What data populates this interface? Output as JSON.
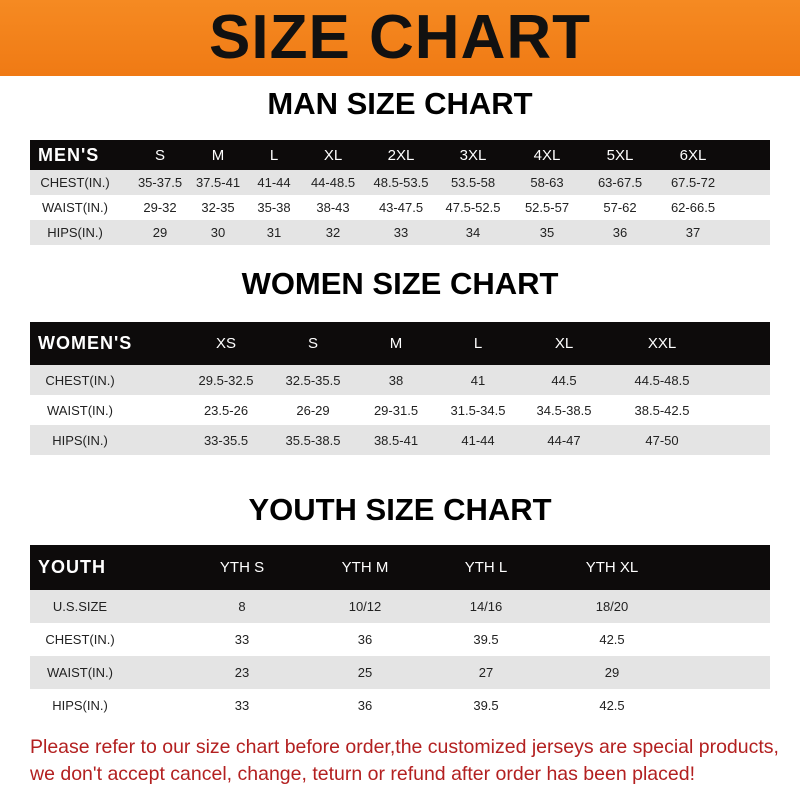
{
  "banner_title": "SIZE CHART",
  "tables": [
    {
      "title": "MAN SIZE CHART",
      "headers": [
        "MEN'S",
        "S",
        "M",
        "L",
        "XL",
        "2XL",
        "3XL",
        "4XL",
        "5XL",
        "6XL"
      ],
      "rows": [
        [
          "CHEST(IN.)",
          "35-37.5",
          "37.5-41",
          "41-44",
          "44-48.5",
          "48.5-53.5",
          "53.5-58",
          "58-63",
          "63-67.5",
          "67.5-72"
        ],
        [
          "WAIST(IN.)",
          "29-32",
          "32-35",
          "35-38",
          "38-43",
          "43-47.5",
          "47.5-52.5",
          "52.5-57",
          "57-62",
          "62-66.5"
        ],
        [
          "HIPS(IN.)",
          "29",
          "30",
          "31",
          "32",
          "33",
          "34",
          "35",
          "36",
          "37"
        ]
      ]
    },
    {
      "title": "WOMEN SIZE CHART",
      "headers": [
        "WOMEN'S",
        "XS",
        "S",
        "M",
        "L",
        "XL",
        "XXL"
      ],
      "rows": [
        [
          "CHEST(IN.)",
          "29.5-32.5",
          "32.5-35.5",
          "38",
          "41",
          "44.5",
          "44.5-48.5"
        ],
        [
          "WAIST(IN.)",
          "23.5-26",
          "26-29",
          "29-31.5",
          "31.5-34.5",
          "34.5-38.5",
          "38.5-42.5"
        ],
        [
          "HIPS(IN.)",
          "33-35.5",
          "35.5-38.5",
          "38.5-41",
          "41-44",
          "44-47",
          "47-50"
        ]
      ]
    },
    {
      "title": "YOUTH SIZE CHART",
      "headers": [
        "YOUTH",
        "YTH S",
        "YTH M",
        "YTH L",
        "YTH XL"
      ],
      "rows": [
        [
          "U.S.SIZE",
          "8",
          "10/12",
          "14/16",
          "18/20"
        ],
        [
          "CHEST(IN.)",
          "33",
          "36",
          "39.5",
          "42.5"
        ],
        [
          "WAIST(IN.)",
          "23",
          "25",
          "27",
          "29"
        ],
        [
          "HIPS(IN.)",
          "33",
          "36",
          "39.5",
          "42.5"
        ]
      ]
    }
  ],
  "footer": {
    "line1": "Please refer to our size chart before order,the customized jerseys are special products,",
    "line2": "we don't accept cancel, change, teturn or refund after order has been placed!"
  },
  "colors": {
    "banner": "#f58a22",
    "header_row": "#0d0b0b",
    "stripe": "#e4e4e4",
    "footer_text": "#b32020"
  }
}
